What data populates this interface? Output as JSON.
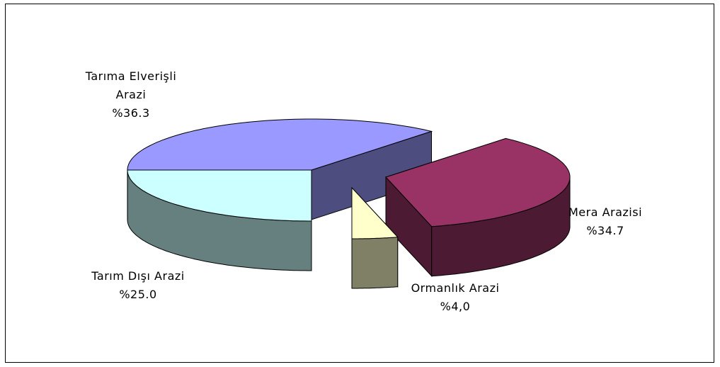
{
  "chart_data": {
    "type": "pie3d",
    "categories": [
      "Tarıma Elverişli Arazi",
      "Mera Arazisi",
      "Ormanlık Arazi",
      "Tarım Dışı Arazi"
    ],
    "values": [
      36.3,
      34.7,
      4.0,
      25.0
    ],
    "value_labels": [
      "%36.3",
      "%34.7",
      "%4,0",
      "%25.0"
    ],
    "colors": [
      "#9999ff",
      "#993366",
      "#ffffcc",
      "#ccffff"
    ]
  }
}
